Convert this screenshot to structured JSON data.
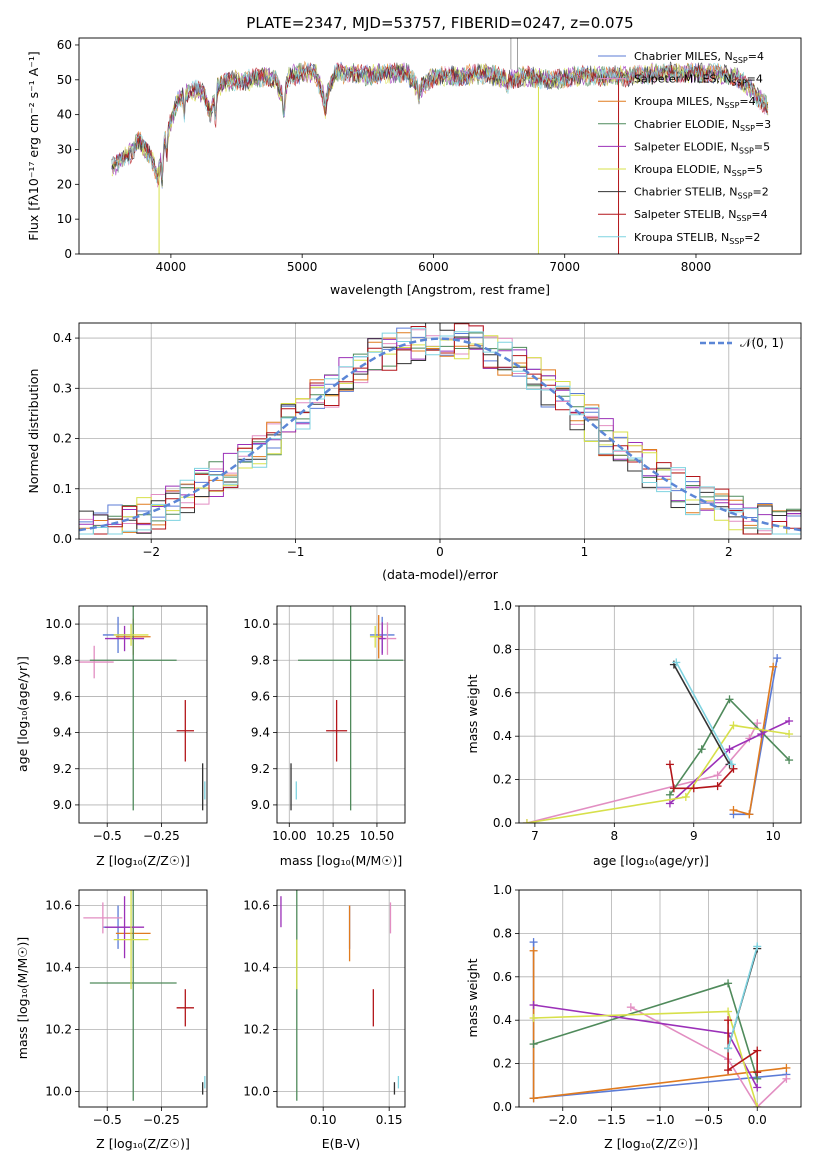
{
  "chart_data": [
    {
      "id": "spectrum",
      "type": "line",
      "title": "PLATE=2347, MJD=53757, FIBERID=0247, z=0.075",
      "xlabel": "wavelength [Angstrom, rest frame]",
      "ylabel": "Flux [fλ10⁻¹⁷ erg cm⁻² s⁻¹ A⁻¹]",
      "xlim": [
        3300,
        8800
      ],
      "ylim": [
        0,
        62
      ],
      "xticks": [
        4000,
        5000,
        6000,
        7000,
        8000
      ],
      "yticks": [
        0,
        10,
        20,
        30,
        40,
        50,
        60
      ],
      "grid": false,
      "legend_position": "top-right",
      "profile": [
        [
          3550,
          25
        ],
        [
          3600,
          26
        ],
        [
          3650,
          28
        ],
        [
          3700,
          29
        ],
        [
          3750,
          33
        ],
        [
          3800,
          30
        ],
        [
          3850,
          28
        ],
        [
          3900,
          22
        ],
        [
          3950,
          32
        ],
        [
          4000,
          38
        ],
        [
          4050,
          44
        ],
        [
          4100,
          46
        ],
        [
          4150,
          47
        ],
        [
          4200,
          47
        ],
        [
          4250,
          46
        ],
        [
          4300,
          40
        ],
        [
          4350,
          48
        ],
        [
          4400,
          49
        ],
        [
          4500,
          50
        ],
        [
          4600,
          50
        ],
        [
          4700,
          51
        ],
        [
          4800,
          50
        ],
        [
          4860,
          44
        ],
        [
          4900,
          51
        ],
        [
          5000,
          52
        ],
        [
          5100,
          52
        ],
        [
          5175,
          44
        ],
        [
          5250,
          52
        ],
        [
          5300,
          52
        ],
        [
          5400,
          52
        ],
        [
          5500,
          51
        ],
        [
          5600,
          52
        ],
        [
          5700,
          52
        ],
        [
          5800,
          52
        ],
        [
          5890,
          47
        ],
        [
          6000,
          51
        ],
        [
          6200,
          51
        ],
        [
          6400,
          52
        ],
        [
          6563,
          50
        ],
        [
          6700,
          51
        ],
        [
          6900,
          50
        ],
        [
          7100,
          51
        ],
        [
          7300,
          51
        ],
        [
          7500,
          51
        ],
        [
          7700,
          52
        ],
        [
          7900,
          52
        ],
        [
          8100,
          52
        ],
        [
          8300,
          51
        ],
        [
          8400,
          48
        ],
        [
          8500,
          44
        ],
        [
          8550,
          42
        ]
      ],
      "series": [
        {
          "name": "Chabrier MILES, N",
          "sub": "SSP",
          "suffix": "=4",
          "color": "#5b7bd6"
        },
        {
          "name": "Salpeter MILES, N",
          "sub": "SSP",
          "suffix": "=4",
          "color": "#e28ec2"
        },
        {
          "name": "Kroupa MILES, N",
          "sub": "SSP",
          "suffix": "=4",
          "color": "#e07b1f"
        },
        {
          "name": "Chabrier ELODIE, N",
          "sub": "SSP",
          "suffix": "=3",
          "color": "#4f8a5b"
        },
        {
          "name": "Salpeter ELODIE, N",
          "sub": "SSP",
          "suffix": "=5",
          "color": "#9b30b8"
        },
        {
          "name": "Kroupa ELODIE, N",
          "sub": "SSP",
          "suffix": "=5",
          "color": "#d7e04a"
        },
        {
          "name": "Chabrier STELIB, N",
          "sub": "SSP",
          "suffix": "=2",
          "color": "#333333"
        },
        {
          "name": "Salpeter STELIB, N",
          "sub": "SSP",
          "suffix": "=4",
          "color": "#b3151a"
        },
        {
          "name": "Kroupa STELIB, N",
          "sub": "SSP",
          "suffix": "=2",
          "color": "#7fd3e0"
        }
      ]
    },
    {
      "id": "residuals",
      "type": "line",
      "xlabel": "(data-model)/error",
      "ylabel": "Normed distribution",
      "xlim": [
        -2.5,
        2.5
      ],
      "ylim": [
        0,
        0.43
      ],
      "xticks": [
        -2,
        -1,
        0,
        1,
        2
      ],
      "yticks": [
        0.0,
        0.1,
        0.2,
        0.3,
        0.4
      ],
      "grid": true,
      "legend": "𝒩(0, 1)",
      "legend_position": "top-right",
      "bin_width": 0.1,
      "hist_colors": [
        "#5b7bd6",
        "#e28ec2",
        "#e07b1f",
        "#4f8a5b",
        "#9b30b8",
        "#d7e04a",
        "#333333",
        "#b3151a",
        "#7fd3e0"
      ],
      "normal_curve_color": "#5b86d6"
    },
    {
      "id": "age-vs-Z",
      "type": "scatter",
      "xlabel": "Z [log₁₀(Z/Z☉)]",
      "ylabel": "age  [log₁₀(age/yr)]",
      "xlim": [
        -0.63,
        -0.04
      ],
      "ylim": [
        8.9,
        10.1
      ],
      "xticks": [
        -0.5,
        -0.25
      ],
      "yticks": [
        9.0,
        9.2,
        9.4,
        9.6,
        9.8,
        10.0
      ],
      "points": [
        {
          "x": -0.45,
          "y": 9.94,
          "xerr": 0.07,
          "yerr": 0.1,
          "color": "#5b7bd6"
        },
        {
          "x": -0.56,
          "y": 9.79,
          "xerr": 0.09,
          "yerr": 0.09,
          "color": "#e28ec2"
        },
        {
          "x": -0.38,
          "y": 9.93,
          "xerr": 0.08,
          "yerr": 0.1,
          "color": "#e07b1f"
        },
        {
          "x": -0.38,
          "y": 9.8,
          "xerr": 0.2,
          "yerr": 0.83,
          "color": "#4f8a5b"
        },
        {
          "x": -0.42,
          "y": 9.92,
          "xerr": 0.09,
          "yerr": 0.07,
          "color": "#9b30b8"
        },
        {
          "x": -0.39,
          "y": 9.94,
          "xerr": 0.08,
          "yerr": 0.06,
          "color": "#d7e04a"
        },
        {
          "x": -0.06,
          "y": 9.1,
          "xerr": 0.0,
          "yerr": 0.13,
          "color": "#333333"
        },
        {
          "x": -0.14,
          "y": 9.41,
          "xerr": 0.04,
          "yerr": 0.17,
          "color": "#b3151a"
        },
        {
          "x": -0.05,
          "y": 9.08,
          "xerr": 0.0,
          "yerr": 0.05,
          "color": "#7fd3e0"
        }
      ]
    },
    {
      "id": "age-vs-mass",
      "type": "scatter",
      "xlabel": "mass [log₁₀(M/M☉)]",
      "ylabel": "",
      "xlim": [
        9.93,
        10.66
      ],
      "ylim": [
        8.9,
        10.1
      ],
      "xticks": [
        10.0,
        10.25,
        10.5
      ],
      "yticks": [
        9.0,
        9.2,
        9.4,
        9.6,
        9.8,
        10.0
      ],
      "points": [
        {
          "x": 10.53,
          "y": 9.94,
          "xerr": 0.07,
          "yerr": 0.1,
          "color": "#5b7bd6"
        },
        {
          "x": 10.56,
          "y": 9.92,
          "xerr": 0.05,
          "yerr": 0.09,
          "color": "#e28ec2"
        },
        {
          "x": 10.51,
          "y": 9.93,
          "xerr": 0.02,
          "yerr": 0.12,
          "color": "#e07b1f"
        },
        {
          "x": 10.35,
          "y": 9.8,
          "xerr": 0.3,
          "yerr": 0.83,
          "color": "#4f8a5b"
        },
        {
          "x": 10.53,
          "y": 9.92,
          "xerr": 0.02,
          "yerr": 0.09,
          "color": "#9b30b8"
        },
        {
          "x": 10.49,
          "y": 9.93,
          "xerr": 0.03,
          "yerr": 0.06,
          "color": "#d7e04a"
        },
        {
          "x": 10.01,
          "y": 9.1,
          "xerr": 0.0,
          "yerr": 0.13,
          "color": "#333333"
        },
        {
          "x": 10.27,
          "y": 9.41,
          "xerr": 0.06,
          "yerr": 0.17,
          "color": "#b3151a"
        },
        {
          "x": 10.04,
          "y": 9.08,
          "xerr": 0.0,
          "yerr": 0.05,
          "color": "#7fd3e0"
        }
      ]
    },
    {
      "id": "weight-vs-age",
      "type": "line",
      "xlabel": "age  [log₁₀(age/yr)]",
      "ylabel": "mass weight",
      "xlim": [
        6.8,
        10.35
      ],
      "ylim": [
        0,
        1.0
      ],
      "xticks": [
        7,
        8,
        9,
        10
      ],
      "yticks": [
        0.0,
        0.2,
        0.4,
        0.6,
        0.8,
        1.0
      ],
      "series": [
        {
          "color": "#5b7bd6",
          "x": [
            9.5,
            9.7,
            10.05
          ],
          "y": [
            0.04,
            0.04,
            0.76
          ]
        },
        {
          "color": "#e28ec2",
          "x": [
            6.9,
            9.3,
            9.7,
            9.8
          ],
          "y": [
            0.0,
            0.22,
            0.39,
            0.46
          ]
        },
        {
          "color": "#e07b1f",
          "x": [
            9.5,
            9.7,
            10.0
          ],
          "y": [
            0.06,
            0.04,
            0.72
          ]
        },
        {
          "color": "#4f8a5b",
          "x": [
            8.7,
            9.1,
            9.45,
            10.2
          ],
          "y": [
            0.13,
            0.34,
            0.57,
            0.29
          ]
        },
        {
          "color": "#9b30b8",
          "x": [
            8.7,
            9.45,
            9.85,
            10.2
          ],
          "y": [
            0.09,
            0.34,
            0.41,
            0.47
          ]
        },
        {
          "color": "#d7e04a",
          "x": [
            6.9,
            8.9,
            9.5,
            10.2
          ],
          "y": [
            0.0,
            0.12,
            0.45,
            0.41
          ]
        },
        {
          "color": "#333333",
          "x": [
            8.75,
            9.45
          ],
          "y": [
            0.73,
            0.27
          ]
        },
        {
          "color": "#b3151a",
          "x": [
            8.7,
            8.75,
            9.0,
            9.3,
            9.5
          ],
          "y": [
            0.27,
            0.16,
            0.16,
            0.17,
            0.25
          ]
        },
        {
          "color": "#7fd3e0",
          "x": [
            8.78,
            9.48
          ],
          "y": [
            0.74,
            0.27
          ]
        }
      ]
    },
    {
      "id": "mass-vs-Z",
      "type": "scatter",
      "xlabel": "Z [log₁₀(Z/Z☉)]",
      "ylabel": "mass [log₁₀(M/M☉)]",
      "xlim": [
        -0.63,
        -0.04
      ],
      "ylim": [
        9.95,
        10.65
      ],
      "xticks": [
        -0.5,
        -0.25
      ],
      "yticks": [
        10.0,
        10.2,
        10.4,
        10.6
      ],
      "points": [
        {
          "x": -0.45,
          "y": 10.53,
          "xerr": 0.07,
          "yerr": 0.07,
          "color": "#5b7bd6"
        },
        {
          "x": -0.52,
          "y": 10.56,
          "xerr": 0.09,
          "yerr": 0.05,
          "color": "#e28ec2"
        },
        {
          "x": -0.38,
          "y": 10.51,
          "xerr": 0.08,
          "yerr": 0.02,
          "color": "#e07b1f"
        },
        {
          "x": -0.38,
          "y": 10.35,
          "xerr": 0.2,
          "yerr": 0.38,
          "color": "#4f8a5b"
        },
        {
          "x": -0.42,
          "y": 10.53,
          "xerr": 0.09,
          "yerr": 0.1,
          "color": "#9b30b8"
        },
        {
          "x": -0.39,
          "y": 10.49,
          "xerr": 0.08,
          "yerr": 0.16,
          "color": "#d7e04a"
        },
        {
          "x": -0.06,
          "y": 10.01,
          "xerr": 0.0,
          "yerr": 0.02,
          "color": "#333333"
        },
        {
          "x": -0.14,
          "y": 10.27,
          "xerr": 0.04,
          "yerr": 0.06,
          "color": "#b3151a"
        },
        {
          "x": -0.05,
          "y": 10.03,
          "xerr": 0.0,
          "yerr": 0.02,
          "color": "#7fd3e0"
        }
      ]
    },
    {
      "id": "mass-vs-ebv",
      "type": "scatter",
      "xlabel": "E(B-V)",
      "ylabel": "",
      "xlim": [
        0.065,
        0.162
      ],
      "ylim": [
        9.95,
        10.65
      ],
      "xticks": [
        0.1,
        0.15
      ],
      "yticks": [
        10.0,
        10.2,
        10.4,
        10.6
      ],
      "points": [
        {
          "x": 0.12,
          "y": 10.53,
          "xerr": 0.0,
          "yerr": 0.07,
          "color": "#5b7bd6"
        },
        {
          "x": 0.151,
          "y": 10.56,
          "xerr": 0.0,
          "yerr": 0.05,
          "color": "#e28ec2"
        },
        {
          "x": 0.12,
          "y": 10.51,
          "xerr": 0.0,
          "yerr": 0.09,
          "color": "#e07b1f"
        },
        {
          "x": 0.08,
          "y": 10.35,
          "xerr": 0.0,
          "yerr": 0.38,
          "color": "#4f8a5b"
        },
        {
          "x": 0.068,
          "y": 10.58,
          "xerr": 0.0,
          "yerr": 0.05,
          "color": "#9b30b8"
        },
        {
          "x": 0.08,
          "y": 10.41,
          "xerr": 0.0,
          "yerr": 0.08,
          "color": "#d7e04a"
        },
        {
          "x": 0.154,
          "y": 10.01,
          "xerr": 0.0,
          "yerr": 0.02,
          "color": "#333333"
        },
        {
          "x": 0.138,
          "y": 10.27,
          "xerr": 0.0,
          "yerr": 0.06,
          "color": "#b3151a"
        },
        {
          "x": 0.157,
          "y": 10.03,
          "xerr": 0.0,
          "yerr": 0.02,
          "color": "#7fd3e0"
        }
      ]
    },
    {
      "id": "weight-vs-Z",
      "type": "line",
      "xlabel": "Z [log₁₀(Z/Z☉)]",
      "ylabel": "mass weight",
      "xlim": [
        -2.45,
        0.45
      ],
      "ylim": [
        0,
        1.0
      ],
      "xticks": [
        -2.0,
        -1.5,
        -1.0,
        -0.5,
        0.0
      ],
      "yticks": [
        0.0,
        0.2,
        0.4,
        0.6,
        0.8,
        1.0
      ],
      "series": [
        {
          "color": "#5b7bd6",
          "x": [
            -2.3,
            -2.3,
            0.3
          ],
          "y": [
            0.76,
            0.04,
            0.15
          ]
        },
        {
          "color": "#e28ec2",
          "x": [
            -1.3,
            -0.3,
            0.0,
            0.3
          ],
          "y": [
            0.46,
            0.22,
            0.0,
            0.13
          ]
        },
        {
          "color": "#e07b1f",
          "x": [
            -2.3,
            -2.3,
            0.3
          ],
          "y": [
            0.72,
            0.04,
            0.18
          ]
        },
        {
          "color": "#4f8a5b",
          "x": [
            -2.3,
            -0.3,
            0.0
          ],
          "y": [
            0.29,
            0.57,
            0.13
          ]
        },
        {
          "color": "#9b30b8",
          "x": [
            -2.3,
            -0.3,
            0.0
          ],
          "y": [
            0.47,
            0.34,
            0.09
          ]
        },
        {
          "color": "#d7e04a",
          "x": [
            -2.3,
            -0.3,
            0.0
          ],
          "y": [
            0.41,
            0.44,
            0.0
          ]
        },
        {
          "color": "#333333",
          "x": [
            -0.3,
            0.0
          ],
          "y": [
            0.27,
            0.73
          ]
        },
        {
          "color": "#b3151a",
          "x": [
            -0.3,
            -0.3,
            0.0,
            0.0
          ],
          "y": [
            0.4,
            0.17,
            0.26,
            0.16
          ]
        },
        {
          "color": "#7fd3e0",
          "x": [
            -0.3,
            0.0
          ],
          "y": [
            0.27,
            0.74
          ]
        }
      ]
    }
  ]
}
